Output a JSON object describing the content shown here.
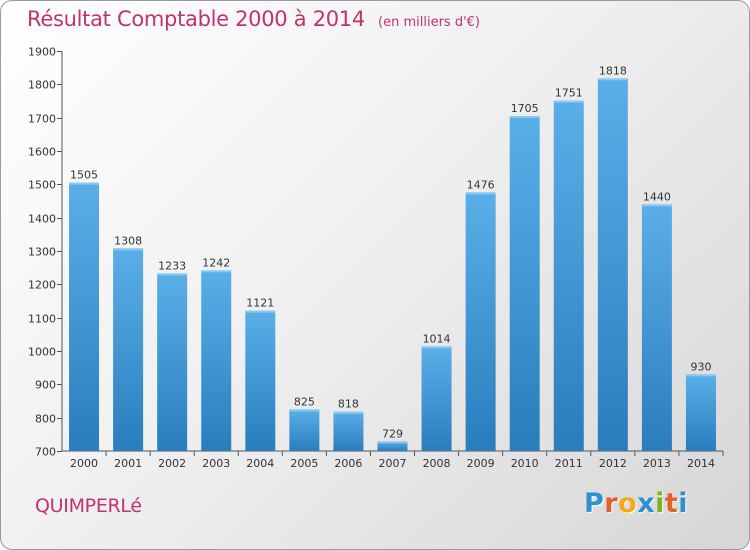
{
  "header": {
    "title": "Résultat Comptable 2000 à 2014",
    "unit": "(en milliers d'€)"
  },
  "footer": {
    "city": "QUIMPERLé",
    "logo_letters": [
      "P",
      "r",
      "o",
      "x",
      "i",
      "t",
      "i"
    ]
  },
  "colors": {
    "bar_top": "#5aafe8",
    "bar_bottom": "#2a7dbd",
    "title": "#c0336f",
    "axis": "#555555"
  },
  "chart_data": {
    "type": "bar",
    "title": "Résultat Comptable 2000 à 2014",
    "subtitle": "(en milliers d'€)",
    "categories": [
      "2000",
      "2001",
      "2002",
      "2003",
      "2004",
      "2005",
      "2006",
      "2007",
      "2008",
      "2009",
      "2010",
      "2011",
      "2012",
      "2013",
      "2014"
    ],
    "values": [
      1505,
      1308,
      1233,
      1242,
      1121,
      825,
      818,
      729,
      1014,
      1476,
      1705,
      1751,
      1818,
      1440,
      930
    ],
    "ylim": [
      700,
      1900
    ],
    "yticks": [
      700,
      800,
      900,
      1000,
      1100,
      1200,
      1300,
      1400,
      1500,
      1600,
      1700,
      1800,
      1900
    ],
    "grid": false,
    "legend": "none",
    "data_labels": true
  }
}
